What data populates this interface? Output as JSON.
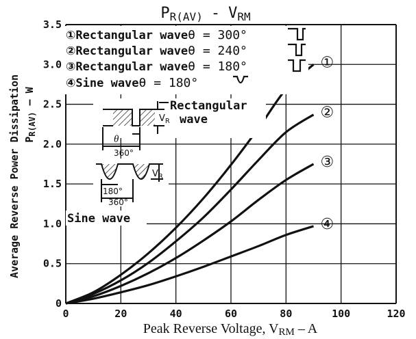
{
  "chart_data": {
    "type": "line",
    "title": "PR(AV) - VRM",
    "title_main_a": "P",
    "title_sub_a": "R(AV)",
    "title_sep": "-",
    "title_main_b": "V",
    "title_sub_b": "RM",
    "xlabel": "Peak Reverse Voltage, VRM – A",
    "xlabel_main": "Peak Reverse Voltage, V",
    "xlabel_sub": "RM",
    "xlabel_tail": " – A",
    "ylabel": "Average Reverse Power Dissipation PR(AV) – W",
    "ylabel_line1": "Average Reverse Power Dissipation",
    "ylabel_line2_main": "P",
    "ylabel_line2_sub": "R(AV)",
    "ylabel_line2_tail": " – W",
    "xlim": [
      0,
      120
    ],
    "ylim": [
      0,
      3.5
    ],
    "x_ticks": [
      0,
      20,
      40,
      60,
      80,
      100,
      120
    ],
    "x_tick_labels": [
      "0",
      "20",
      "40",
      "60",
      "80",
      "100",
      "120"
    ],
    "y_ticks": [
      0,
      0.5,
      1.0,
      1.5,
      2.0,
      2.5,
      3.0,
      3.5
    ],
    "y_tick_labels": [
      "0",
      "0.5",
      "1.0",
      "1.5",
      "2.0",
      "2.5",
      "3.0",
      "3.5"
    ],
    "grid": true,
    "legend_position": "top-left",
    "line_color": "#111111",
    "series": [
      {
        "name": "Rectangular wave θ = 300°",
        "marker": "①",
        "legend_text": "Rectangular wave",
        "legend_theta": "θ = 300°",
        "x": [
          0,
          10,
          20,
          30,
          40,
          50,
          60,
          70,
          80,
          90
        ],
        "y": [
          0,
          0.14,
          0.36,
          0.63,
          0.95,
          1.32,
          1.74,
          2.2,
          2.69,
          3.0
        ]
      },
      {
        "name": "Rectangular wave θ = 240°",
        "marker": "②",
        "legend_text": "Rectangular wave",
        "legend_theta": "θ = 240°",
        "x": [
          0,
          10,
          20,
          30,
          40,
          50,
          60,
          70,
          80,
          90
        ],
        "y": [
          0,
          0.12,
          0.29,
          0.51,
          0.78,
          1.08,
          1.43,
          1.8,
          2.15,
          2.37
        ]
      },
      {
        "name": "Rectangular wave θ = 180°",
        "marker": "③",
        "legend_text": "Rectangular wave",
        "legend_theta": "θ = 180°",
        "x": [
          0,
          10,
          20,
          30,
          40,
          50,
          60,
          70,
          80,
          90
        ],
        "y": [
          0,
          0.09,
          0.22,
          0.38,
          0.57,
          0.79,
          1.03,
          1.3,
          1.55,
          1.75
        ]
      },
      {
        "name": "Sine wave θ = 180°",
        "marker": "④",
        "legend_text": "Sine wave",
        "legend_theta": "θ = 180°",
        "x": [
          0,
          10,
          20,
          30,
          40,
          50,
          60,
          70,
          80,
          90
        ],
        "y": [
          0,
          0.06,
          0.14,
          0.23,
          0.34,
          0.46,
          0.59,
          0.72,
          0.86,
          0.97
        ]
      }
    ],
    "annotations": {
      "rect_label_line1": "Rectangular",
      "rect_label_line2": "wave",
      "sine_label": "Sine wave",
      "vr_main": "V",
      "vr_sub": "R",
      "theta": "θ",
      "deg360": "360°",
      "deg180": "180°"
    }
  }
}
